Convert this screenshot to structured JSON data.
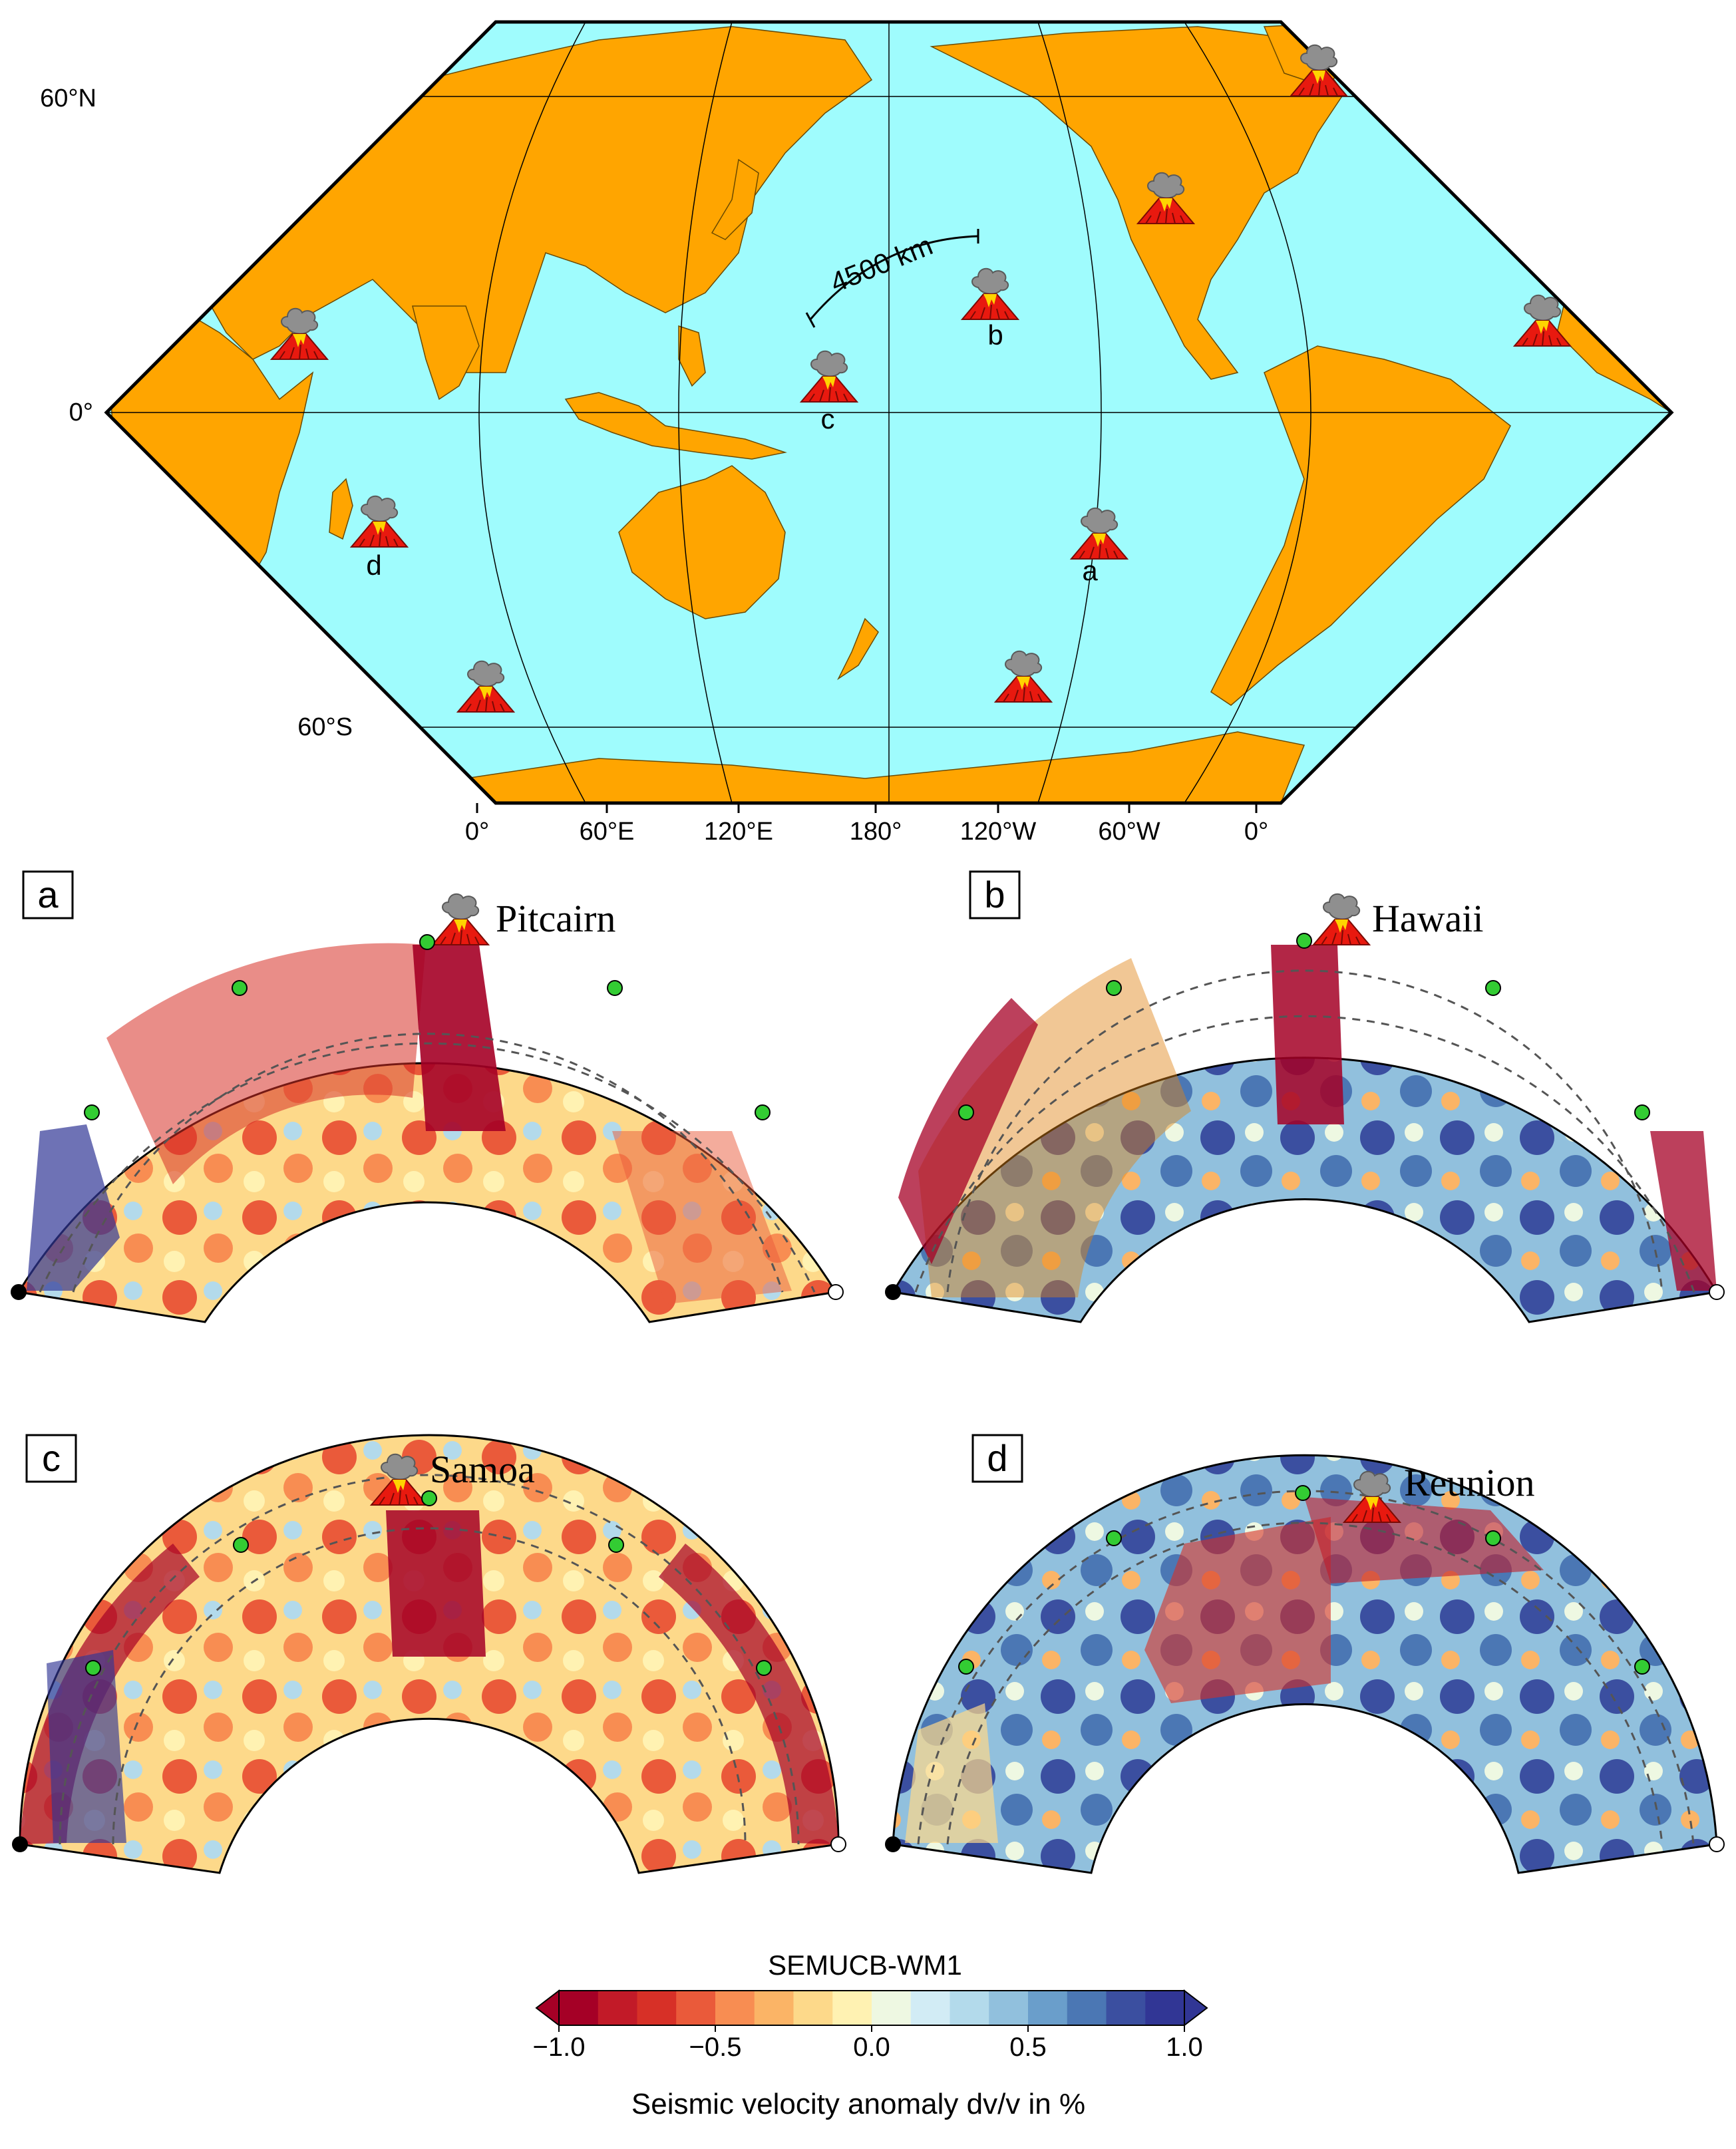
{
  "map": {
    "lat_labels": [
      "60°N",
      "0°",
      "60°S"
    ],
    "lon_labels": [
      "0°",
      "60°E",
      "120°E",
      "180°",
      "120°W",
      "60°W",
      "0°"
    ],
    "distance_label": "4500 km",
    "site_letters": [
      "a",
      "b",
      "c",
      "d"
    ],
    "volcano_icon": "volcano-icon",
    "colors": {
      "ocean": "#9ffcfd",
      "land": "#ffa500",
      "volcano": "#e8190f",
      "lava": "#ffd400",
      "plume": "#8f8f8f"
    }
  },
  "panels": [
    {
      "letter": "a",
      "hotspot": "Pitcairn"
    },
    {
      "letter": "b",
      "hotspot": "Hawaii"
    },
    {
      "letter": "c",
      "hotspot": "Samoa"
    },
    {
      "letter": "d",
      "hotspot": "Reunion"
    }
  ],
  "colorbar": {
    "title": "SEMUCB-WM1",
    "ticks": [
      "−1.0",
      "−0.5",
      "0.0",
      "0.5",
      "1.0"
    ],
    "tick_values": [
      -1.0,
      -0.5,
      0.0,
      0.5,
      1.0
    ],
    "range": [
      -1.0,
      1.0
    ],
    "label": "Seismic velocity anomaly dv/v in %",
    "colors": [
      "#a50026",
      "#c21a28",
      "#d73027",
      "#ea5a3a",
      "#f88d52",
      "#fbb466",
      "#fdd98a",
      "#fff2b2",
      "#eef8e2",
      "#d2ecf5",
      "#b3daeb",
      "#91c0dd",
      "#6a9ecb",
      "#4b77b4",
      "#3b4fa0",
      "#313695"
    ]
  }
}
